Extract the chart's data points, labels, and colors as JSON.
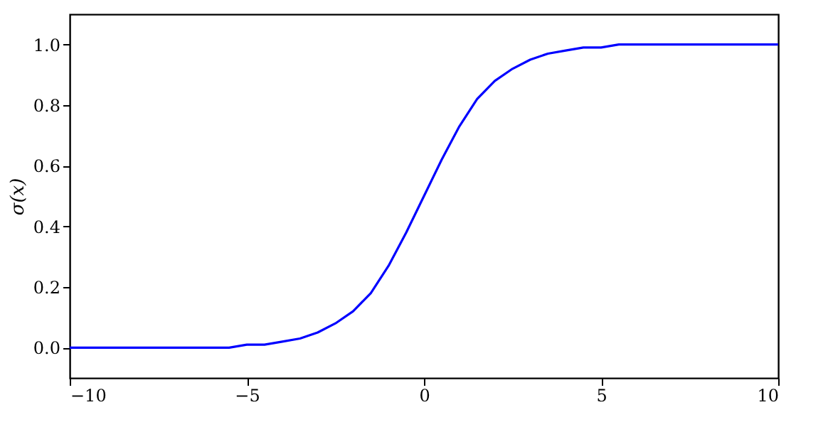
{
  "chart_data": {
    "type": "line",
    "ylabel": "σ(x)",
    "x": [
      -10,
      -9.5,
      -9,
      -8.5,
      -8,
      -7.5,
      -7,
      -6.5,
      -6,
      -5.5,
      -5,
      -4.5,
      -4,
      -3.5,
      -3,
      -2.5,
      -2,
      -1.5,
      -1,
      -0.5,
      0,
      0.5,
      1,
      1.5,
      2,
      2.5,
      3,
      3.5,
      4,
      4.5,
      5,
      5.5,
      6,
      6.5,
      7,
      7.5,
      8,
      8.5,
      9,
      9.5,
      10
    ],
    "series": [
      {
        "color": "#0000ff",
        "values": [
          0,
          0,
          0,
          0,
          0,
          0,
          0,
          0,
          0,
          0,
          0.01,
          0.01,
          0.02,
          0.03,
          0.05,
          0.08,
          0.12,
          0.18,
          0.27,
          0.38,
          0.5,
          0.62,
          0.73,
          0.82,
          0.88,
          0.92,
          0.95,
          0.97,
          0.98,
          0.99,
          0.99,
          1,
          1,
          1,
          1,
          1,
          1,
          1,
          1,
          1,
          1
        ]
      }
    ],
    "xlim": [
      -10,
      10
    ],
    "xticks": [
      -10,
      -5,
      0,
      5,
      10
    ],
    "ylim": [
      -0.1,
      1.1
    ],
    "yticks": [
      {
        "value": 0,
        "label": "0.0"
      },
      0.2,
      0.4,
      0.6,
      0.8,
      {
        "value": 1,
        "label": "1.0"
      }
    ],
    "grid": false,
    "marker": "none",
    "line_style": "solid"
  }
}
